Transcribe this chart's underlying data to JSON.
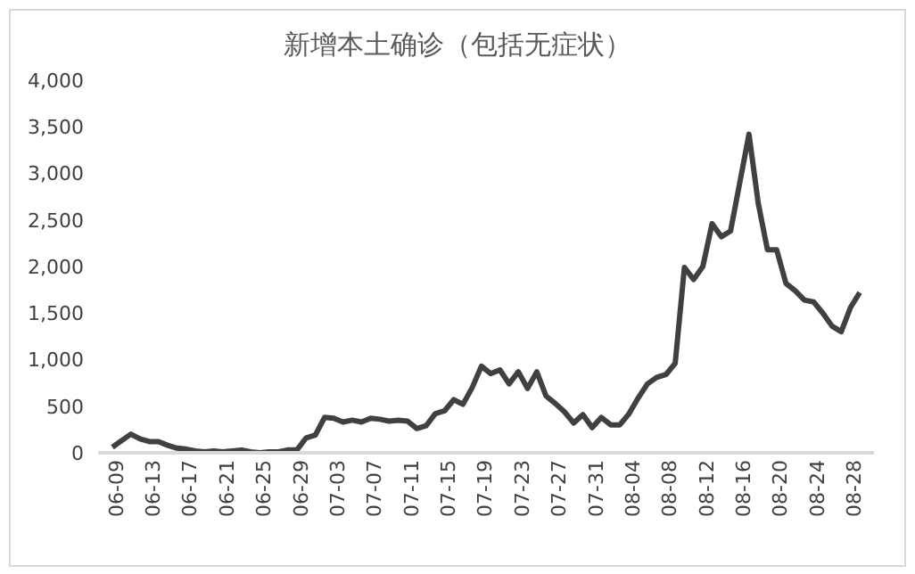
{
  "chart_data": {
    "type": "line",
    "title": "新增本土确诊（包括无症状）",
    "categories": [
      "06-09",
      null,
      null,
      null,
      "06-13",
      null,
      null,
      null,
      "06-17",
      null,
      null,
      null,
      "06-21",
      null,
      null,
      null,
      "06-25",
      null,
      null,
      null,
      "06-29",
      null,
      null,
      null,
      "07-03",
      null,
      null,
      null,
      "07-07",
      null,
      null,
      null,
      "07-11",
      null,
      null,
      null,
      "07-15",
      null,
      null,
      null,
      "07-19",
      null,
      null,
      null,
      "07-23",
      null,
      null,
      null,
      "07-27",
      null,
      null,
      null,
      "07-31",
      null,
      null,
      null,
      "08-04",
      null,
      null,
      null,
      "08-08",
      null,
      null,
      null,
      "08-12",
      null,
      null,
      null,
      "08-16",
      null,
      null,
      null,
      "08-20",
      null,
      null,
      null,
      "08-24",
      null,
      null,
      null,
      "08-28",
      null
    ],
    "series": [
      {
        "color": "#404040",
        "values": [
          60,
          130,
          200,
          150,
          120,
          120,
          80,
          50,
          40,
          20,
          10,
          20,
          10,
          20,
          30,
          10,
          0,
          10,
          10,
          30,
          30,
          160,
          190,
          380,
          370,
          330,
          350,
          330,
          370,
          360,
          340,
          350,
          340,
          260,
          290,
          420,
          450,
          570,
          520,
          700,
          930,
          850,
          890,
          740,
          870,
          690,
          870,
          610,
          530,
          440,
          320,
          410,
          270,
          380,
          300,
          300,
          420,
          590,
          740,
          810,
          840,
          960,
          1990,
          1860,
          2000,
          2460,
          2320,
          2380,
          2900,
          3420,
          2680,
          2180,
          2180,
          1820,
          1740,
          1640,
          1620,
          1500,
          1360,
          1300,
          1560,
          1720
        ]
      }
    ],
    "ylim": [
      0,
      4000
    ],
    "yticks": [
      {
        "value": 0,
        "label": "0"
      },
      {
        "value": 500,
        "label": "500"
      },
      {
        "value": 1000,
        "label": "1,000"
      },
      {
        "value": 1500,
        "label": "1,500"
      },
      {
        "value": 2000,
        "label": "2,000"
      },
      {
        "value": 2500,
        "label": "2,500"
      },
      {
        "value": 3000,
        "label": "3,000"
      },
      {
        "value": 3500,
        "label": "3,500"
      },
      {
        "value": 4000,
        "label": "4,000"
      }
    ],
    "grid": false,
    "legend": false,
    "marker": "none",
    "line_style": "solid"
  }
}
